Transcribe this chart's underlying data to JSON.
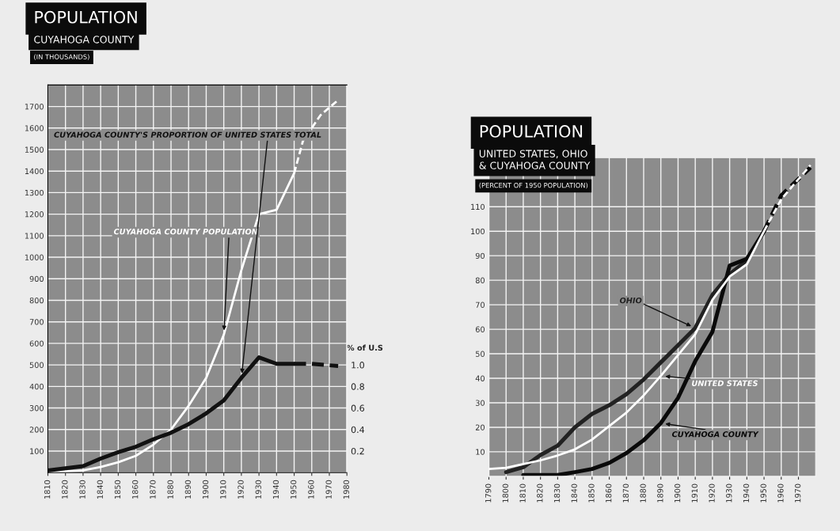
{
  "chart_data": [
    {
      "type": "line",
      "title": "POPULATION",
      "subtitle": "CUYAHOGA COUNTY",
      "ylabel": "(IN THOUSANDS)",
      "y2label": "% of U.S",
      "series": [
        {
          "name": "CUYAHOGA COUNTY POPULATION",
          "color": "#ffffff",
          "x": [
            1810,
            1820,
            1830,
            1840,
            1850,
            1860,
            1870,
            1880,
            1890,
            1900,
            1910,
            1920,
            1930,
            1940,
            1950
          ],
          "values": [
            2,
            6,
            10,
            26,
            48,
            78,
            130,
            200,
            310,
            440,
            640,
            940,
            1200,
            1220,
            1390
          ]
        },
        {
          "name": "CUYAHOGA COUNTY'S PROPORTION OF UNITED STATES TOTAL",
          "color": "#111111",
          "axis": "y2",
          "x": [
            1810,
            1820,
            1830,
            1840,
            1850,
            1860,
            1870,
            1880,
            1890,
            1900,
            1910,
            1920,
            1930,
            1940,
            1950
          ],
          "values": [
            0.02,
            0.04,
            0.06,
            0.13,
            0.19,
            0.24,
            0.31,
            0.37,
            0.45,
            0.55,
            0.67,
            0.88,
            1.07,
            1.01,
            1.01
          ]
        },
        {
          "color": "#ffffff",
          "line_style": "dashed",
          "x": [
            1950,
            1955,
            1960,
            1965,
            1975
          ],
          "values": [
            1390,
            1540,
            1600,
            1660,
            1730
          ]
        },
        {
          "color": "#111111",
          "line_style": "dashed",
          "axis": "y2",
          "x": [
            1950,
            1960,
            1975
          ],
          "values": [
            1.01,
            1.01,
            0.99
          ]
        }
      ],
      "xlim": [
        1810,
        1980
      ],
      "xticks": [
        1810,
        1820,
        1830,
        1840,
        1850,
        1860,
        1870,
        1880,
        1890,
        1900,
        1910,
        1920,
        1930,
        1940,
        1950,
        1960,
        1970,
        1980
      ],
      "ylim": [
        0,
        1800
      ],
      "yticks": [
        100,
        200,
        300,
        400,
        500,
        600,
        700,
        800,
        900,
        1000,
        1100,
        1200,
        1300,
        1400,
        1500,
        1600,
        1700
      ],
      "y2lim": [
        0,
        3.6
      ],
      "y2ticks": [
        0.2,
        0.4,
        0.6,
        0.8,
        {
          "value": 1,
          "label": "1.0"
        }
      ],
      "grid": true
    },
    {
      "type": "line",
      "title": "POPULATION",
      "subtitle": "UNITED STATES, OHIO\n& CUYAHOGA COUNTY",
      "ylabel": "(PERCENT OF 1950 POPULATION)",
      "series": [
        {
          "name": "UNITED STATES",
          "color": "#ffffff",
          "x": [
            1790,
            1800,
            1810,
            1820,
            1830,
            1840,
            1850,
            1860,
            1870,
            1880,
            1890,
            1900,
            1910,
            1920,
            1930,
            1940,
            1950
          ],
          "values": [
            3,
            3.5,
            5,
            6.5,
            8.5,
            11,
            15,
            20.5,
            26,
            33,
            41,
            49.5,
            58,
            72,
            81.5,
            86.5,
            100
          ]
        },
        {
          "name": "OHIO",
          "color": "#222222",
          "x": [
            1800,
            1810,
            1820,
            1830,
            1840,
            1850,
            1860,
            1870,
            1880,
            1890,
            1900,
            1910,
            1920,
            1930,
            1940,
            1950
          ],
          "values": [
            1.7,
            3.7,
            8.7,
            12.5,
            20,
            25.5,
            29,
            33.5,
            39.5,
            46.5,
            53.5,
            60.5,
            74,
            82.5,
            88,
            100
          ]
        },
        {
          "name": "CUYAHOGA COUNTY",
          "color": "#0a0a0a",
          "x": [
            1810,
            1820,
            1830,
            1840,
            1850,
            1860,
            1870,
            1880,
            1890,
            1900,
            1910,
            1920,
            1930,
            1940,
            1950
          ],
          "values": [
            0.5,
            0.5,
            0.5,
            1.7,
            3,
            5.5,
            9.5,
            14.7,
            21.7,
            32,
            47,
            59,
            86,
            88.7,
            100
          ]
        },
        {
          "color": "#ffffff",
          "line_style": "dashed",
          "x": [
            1950,
            1960,
            1977
          ],
          "values": [
            100,
            113,
            127
          ]
        },
        {
          "color": "#0a0a0a",
          "line_style": "dashed",
          "x": [
            1950,
            1960,
            1977
          ],
          "values": [
            100,
            114.6,
            126
          ]
        }
      ],
      "xlim": [
        1790,
        1980
      ],
      "xticks": [
        1790,
        1800,
        1810,
        1820,
        1830,
        1840,
        1850,
        1860,
        1870,
        1880,
        1890,
        1900,
        1910,
        1920,
        1930,
        1940,
        1950,
        1960,
        1970
      ],
      "ylim": [
        0,
        130
      ],
      "yticks": [
        10,
        20,
        30,
        40,
        50,
        60,
        70,
        80,
        90,
        100,
        110
      ],
      "grid": true
    }
  ]
}
